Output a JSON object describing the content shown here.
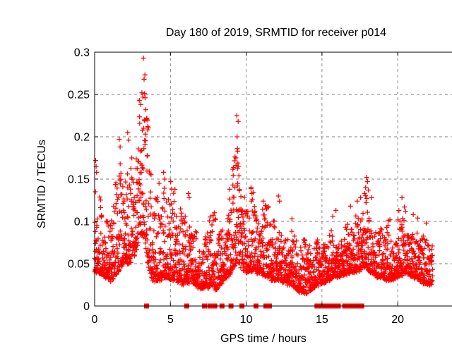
{
  "page": {
    "background": "#ffffff"
  },
  "chart_data": {
    "type": "scatter",
    "title": "Day 180 of 2019, SRMTID for receiver p014",
    "xlabel": "GPS time / hours",
    "ylabel": "SRMTID / TECUs",
    "xlim": [
      0,
      24
    ],
    "ylim": [
      0,
      0.3
    ],
    "xticks": [
      0,
      5,
      10,
      15,
      20
    ],
    "yticks": [
      0,
      0.05,
      0.1,
      0.15,
      0.2,
      0.25,
      0.3
    ],
    "xtick_labels": [
      "0",
      "5",
      "10",
      "15",
      "20"
    ],
    "ytick_labels": [
      "0",
      "0.05",
      "0.1",
      "0.15",
      "0.2",
      "0.25",
      "0.3"
    ],
    "grid": {
      "show": true,
      "style": "dashed",
      "color": "#7f7f7f"
    },
    "legend": "none",
    "marker": {
      "shape": "plus",
      "color": "#ff0000",
      "size": 7
    },
    "zero_marker": {
      "shape": "filled-square",
      "color": "#ff0000",
      "size": 7
    },
    "time_range": [
      0,
      22.3
    ],
    "points_per_hour": 120,
    "seed": 1318,
    "envelope": [
      [
        0.0,
        0.04,
        0.17
      ],
      [
        0.3,
        0.04,
        0.13
      ],
      [
        0.7,
        0.035,
        0.115
      ],
      [
        1.1,
        0.03,
        0.125
      ],
      [
        1.5,
        0.04,
        0.185
      ],
      [
        1.9,
        0.05,
        0.2
      ],
      [
        2.3,
        0.05,
        0.19
      ],
      [
        2.6,
        0.06,
        0.165
      ],
      [
        2.9,
        0.075,
        0.23
      ],
      [
        3.1,
        0.085,
        0.265
      ],
      [
        3.3,
        0.08,
        0.29
      ],
      [
        3.5,
        0.05,
        0.23
      ],
      [
        3.8,
        0.03,
        0.13
      ],
      [
        4.2,
        0.03,
        0.14
      ],
      [
        4.6,
        0.035,
        0.155
      ],
      [
        5.0,
        0.03,
        0.15
      ],
      [
        5.5,
        0.028,
        0.12
      ],
      [
        6.0,
        0.025,
        0.13
      ],
      [
        6.5,
        0.028,
        0.105
      ],
      [
        7.0,
        0.02,
        0.09
      ],
      [
        7.5,
        0.022,
        0.105
      ],
      [
        8.0,
        0.02,
        0.115
      ],
      [
        8.5,
        0.03,
        0.105
      ],
      [
        9.0,
        0.04,
        0.14
      ],
      [
        9.3,
        0.05,
        0.185
      ],
      [
        9.45,
        0.055,
        0.22
      ],
      [
        9.6,
        0.045,
        0.15
      ],
      [
        10.0,
        0.04,
        0.12
      ],
      [
        10.4,
        0.042,
        0.14
      ],
      [
        11.0,
        0.038,
        0.125
      ],
      [
        11.5,
        0.033,
        0.115
      ],
      [
        12.0,
        0.03,
        0.125
      ],
      [
        12.5,
        0.028,
        0.1
      ],
      [
        13.0,
        0.024,
        0.095
      ],
      [
        13.5,
        0.018,
        0.085
      ],
      [
        14.0,
        0.015,
        0.08
      ],
      [
        14.5,
        0.022,
        0.09
      ],
      [
        15.0,
        0.028,
        0.1
      ],
      [
        15.5,
        0.03,
        0.095
      ],
      [
        16.0,
        0.033,
        0.11
      ],
      [
        16.5,
        0.038,
        0.105
      ],
      [
        17.0,
        0.04,
        0.115
      ],
      [
        17.5,
        0.042,
        0.13
      ],
      [
        17.9,
        0.048,
        0.15
      ],
      [
        18.2,
        0.04,
        0.125
      ],
      [
        18.6,
        0.035,
        0.11
      ],
      [
        19.0,
        0.033,
        0.1
      ],
      [
        19.5,
        0.03,
        0.105
      ],
      [
        20.0,
        0.035,
        0.12
      ],
      [
        20.5,
        0.038,
        0.115
      ],
      [
        21.0,
        0.035,
        0.11
      ],
      [
        21.5,
        0.03,
        0.1
      ],
      [
        22.0,
        0.025,
        0.09
      ],
      [
        22.3,
        0.028,
        0.08
      ]
    ],
    "highlight_points": [
      [
        0.07,
        0.172
      ],
      [
        0.1,
        0.165
      ],
      [
        0.13,
        0.158
      ],
      [
        0.05,
        0.135
      ],
      [
        1.62,
        0.197
      ],
      [
        1.68,
        0.188
      ],
      [
        2.18,
        0.205
      ],
      [
        2.24,
        0.196
      ],
      [
        2.45,
        0.175
      ],
      [
        2.95,
        0.243
      ],
      [
        3.05,
        0.238
      ],
      [
        3.12,
        0.252
      ],
      [
        3.18,
        0.247
      ],
      [
        3.22,
        0.293
      ],
      [
        3.26,
        0.268
      ],
      [
        3.3,
        0.251
      ],
      [
        3.33,
        0.246
      ],
      [
        3.38,
        0.232
      ],
      [
        3.44,
        0.222
      ],
      [
        3.5,
        0.212
      ],
      [
        4.25,
        0.145
      ],
      [
        4.55,
        0.158
      ],
      [
        4.62,
        0.15
      ],
      [
        5.02,
        0.147
      ],
      [
        5.3,
        0.138
      ],
      [
        6.18,
        0.133
      ],
      [
        6.24,
        0.128
      ],
      [
        8.92,
        0.138
      ],
      [
        9.12,
        0.143
      ],
      [
        9.32,
        0.175
      ],
      [
        9.38,
        0.225
      ],
      [
        9.4,
        0.2
      ],
      [
        9.42,
        0.186
      ],
      [
        9.44,
        0.183
      ],
      [
        9.48,
        0.165
      ],
      [
        9.52,
        0.154
      ],
      [
        10.32,
        0.14
      ],
      [
        10.38,
        0.133
      ],
      [
        11.12,
        0.124
      ],
      [
        11.45,
        0.118
      ],
      [
        12.12,
        0.13
      ],
      [
        12.2,
        0.124
      ],
      [
        13.02,
        0.103
      ],
      [
        15.92,
        0.113
      ],
      [
        16.88,
        0.118
      ],
      [
        17.32,
        0.124
      ],
      [
        17.55,
        0.128
      ],
      [
        17.88,
        0.14
      ],
      [
        17.94,
        0.152
      ],
      [
        18.0,
        0.147
      ],
      [
        18.06,
        0.137
      ],
      [
        18.28,
        0.128
      ],
      [
        20.28,
        0.128
      ],
      [
        20.44,
        0.117
      ],
      [
        20.52,
        0.112
      ],
      [
        21.02,
        0.108
      ],
      [
        21.32,
        0.104
      ],
      [
        21.88,
        0.098
      ]
    ],
    "zero_flag_hours": [
      3.42,
      6.07,
      7.25,
      7.6,
      7.93,
      8.4,
      9.0,
      9.72,
      10.65,
      11.3,
      11.54,
      14.67,
      14.85,
      15.0,
      15.15,
      15.3,
      15.45,
      15.58,
      15.8,
      15.95,
      16.08,
      16.5,
      16.62,
      16.8,
      16.95,
      17.1,
      17.25,
      17.5,
      17.62
    ]
  }
}
